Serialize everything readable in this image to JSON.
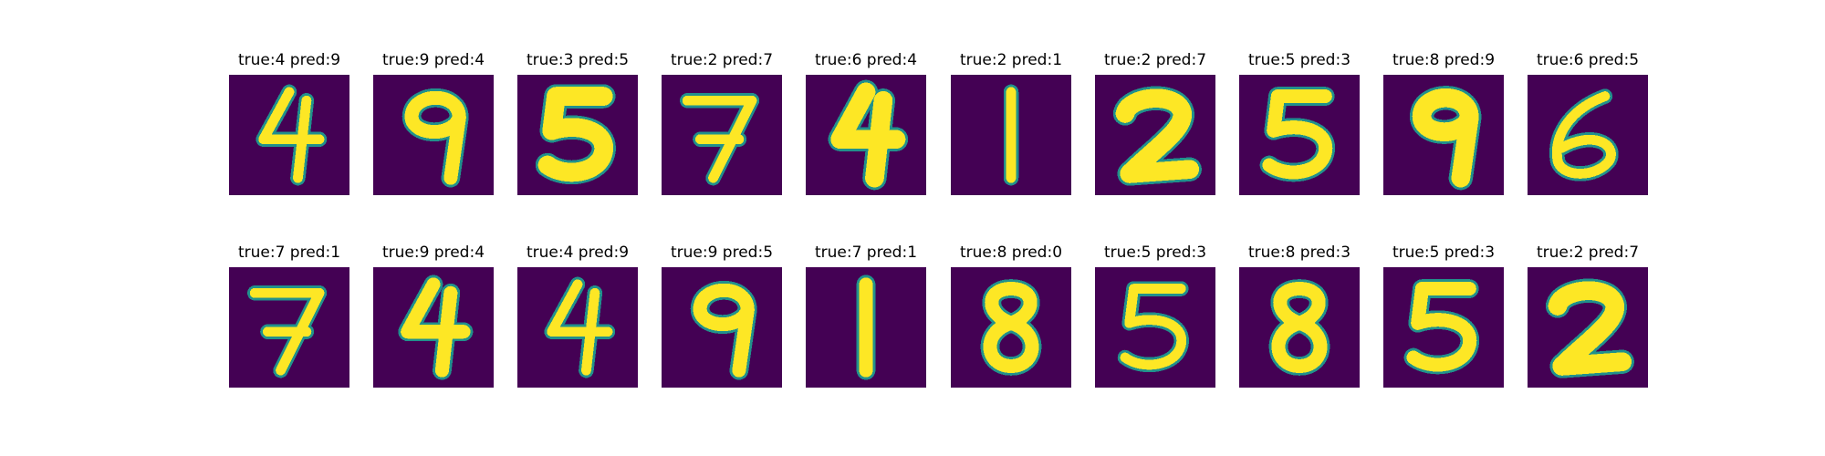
{
  "chart_data": {
    "type": "image-grid",
    "rows": 2,
    "cols": 10,
    "colors": {
      "background": "#440154",
      "stroke_edge": "#21918c",
      "stroke": "#fde725"
    },
    "panels": [
      {
        "title": "true:4 pred:9",
        "true": 4,
        "pred": 9,
        "digit": "4",
        "style": "thin"
      },
      {
        "title": "true:9 pred:4",
        "true": 9,
        "pred": 4,
        "digit": "9",
        "style": "thick"
      },
      {
        "title": "true:3 pred:5",
        "true": 3,
        "pred": 5,
        "digit": "5",
        "style": "bold"
      },
      {
        "title": "true:2 pred:7",
        "true": 2,
        "pred": 7,
        "digit": "7",
        "style": "thin"
      },
      {
        "title": "true:6 pred:4",
        "true": 6,
        "pred": 4,
        "digit": "4",
        "style": "bold"
      },
      {
        "title": "true:2 pred:1",
        "true": 2,
        "pred": 1,
        "digit": "1",
        "style": "thin"
      },
      {
        "title": "true:2 pred:7",
        "true": 2,
        "pred": 7,
        "digit": "2",
        "style": "bold"
      },
      {
        "title": "true:5 pred:3",
        "true": 5,
        "pred": 3,
        "digit": "5",
        "style": "thick"
      },
      {
        "title": "true:8 pred:9",
        "true": 8,
        "pred": 9,
        "digit": "9",
        "style": "bold"
      },
      {
        "title": "true:6 pred:5",
        "true": 6,
        "pred": 5,
        "digit": "6",
        "style": "thin"
      },
      {
        "title": "true:7 pred:1",
        "true": 7,
        "pred": 1,
        "digit": "7",
        "style": "thin"
      },
      {
        "title": "true:9 pred:4",
        "true": 9,
        "pred": 4,
        "digit": "4",
        "style": "thick"
      },
      {
        "title": "true:4 pred:9",
        "true": 4,
        "pred": 9,
        "digit": "4",
        "style": "thin"
      },
      {
        "title": "true:9 pred:5",
        "true": 9,
        "pred": 5,
        "digit": "9",
        "style": "thick"
      },
      {
        "title": "true:7 pred:1",
        "true": 7,
        "pred": 1,
        "digit": "1",
        "style": "thick"
      },
      {
        "title": "true:8 pred:0",
        "true": 8,
        "pred": 0,
        "digit": "8",
        "style": "thick"
      },
      {
        "title": "true:5 pred:3",
        "true": 5,
        "pred": 3,
        "digit": "5",
        "style": "thin"
      },
      {
        "title": "true:8 pred:3",
        "true": 8,
        "pred": 3,
        "digit": "8",
        "style": "thick"
      },
      {
        "title": "true:5 pred:3",
        "true": 5,
        "pred": 3,
        "digit": "5",
        "style": "thick"
      },
      {
        "title": "true:2 pred:7",
        "true": 2,
        "pred": 7,
        "digit": "2",
        "style": "bold"
      }
    ]
  }
}
